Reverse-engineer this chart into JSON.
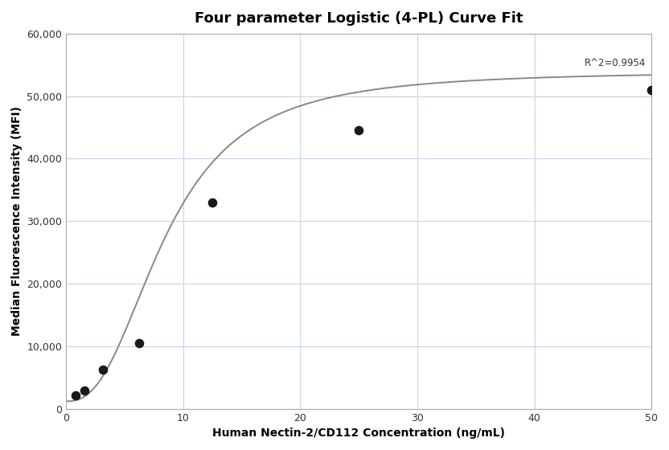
{
  "title": "Four parameter Logistic (4-PL) Curve Fit",
  "xlabel": "Human Nectin-2/CD112 Concentration (ng/mL)",
  "ylabel": "Median Fluorescence Intensity (MFI)",
  "data_points_x": [
    0.78,
    1.56,
    3.125,
    6.25,
    12.5,
    25.0,
    50.0
  ],
  "data_points_y": [
    2200,
    2900,
    6300,
    10500,
    33000,
    44500,
    51000
  ],
  "xlim": [
    0,
    50
  ],
  "ylim": [
    0,
    60000
  ],
  "xticks": [
    0,
    10,
    20,
    30,
    40,
    50
  ],
  "yticks": [
    0,
    10000,
    20000,
    30000,
    40000,
    50000,
    60000
  ],
  "r_squared": "R^2=0.9954",
  "r2_x": 49.5,
  "r2_y": 54500,
  "curve_color": "#888888",
  "dot_color": "#1a1a1a",
  "dot_size": 70,
  "background_color": "#ffffff",
  "grid_color": "#c8d4e8",
  "title_fontsize": 13,
  "label_fontsize": 10,
  "4pl_A": 1200,
  "4pl_B": 2.5,
  "4pl_C": 8.5,
  "4pl_D": 54000
}
